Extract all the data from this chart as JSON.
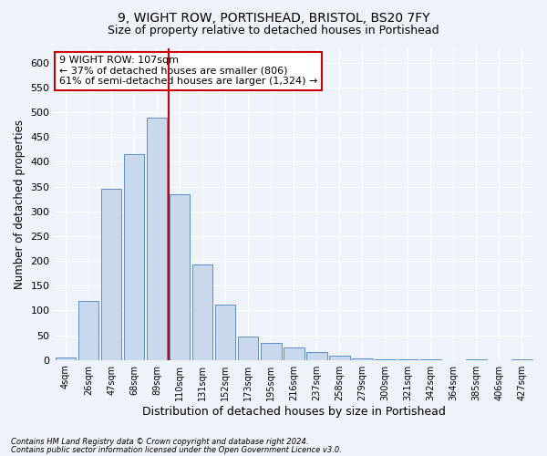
{
  "title1": "9, WIGHT ROW, PORTISHEAD, BRISTOL, BS20 7FY",
  "title2": "Size of property relative to detached houses in Portishead",
  "xlabel": "Distribution of detached houses by size in Portishead",
  "ylabel": "Number of detached properties",
  "bar_labels": [
    "4sqm",
    "26sqm",
    "47sqm",
    "68sqm",
    "89sqm",
    "110sqm",
    "131sqm",
    "152sqm",
    "173sqm",
    "195sqm",
    "216sqm",
    "237sqm",
    "258sqm",
    "279sqm",
    "300sqm",
    "321sqm",
    "342sqm",
    "364sqm",
    "385sqm",
    "406sqm",
    "427sqm"
  ],
  "bar_values": [
    5,
    120,
    345,
    415,
    490,
    335,
    192,
    112,
    48,
    35,
    25,
    16,
    8,
    3,
    2,
    1,
    1,
    0,
    1,
    0,
    2
  ],
  "bar_color": "#c9d9ed",
  "bar_edge_color": "#5b8fc9",
  "redline_x": 4.5,
  "marker_color": "#cc0000",
  "annotation_text": "9 WIGHT ROW: 107sqm\n← 37% of detached houses are smaller (806)\n61% of semi-detached houses are larger (1,324) →",
  "annotation_box_color": "#ffffff",
  "annotation_box_edge": "#cc0000",
  "ylim": [
    0,
    630
  ],
  "yticks": [
    0,
    50,
    100,
    150,
    200,
    250,
    300,
    350,
    400,
    450,
    500,
    550,
    600
  ],
  "footer1": "Contains HM Land Registry data © Crown copyright and database right 2024.",
  "footer2": "Contains public sector information licensed under the Open Government Licence v3.0.",
  "background_color": "#eef2f9",
  "grid_color": "#ffffff",
  "title1_fontsize": 10,
  "title2_fontsize": 9
}
